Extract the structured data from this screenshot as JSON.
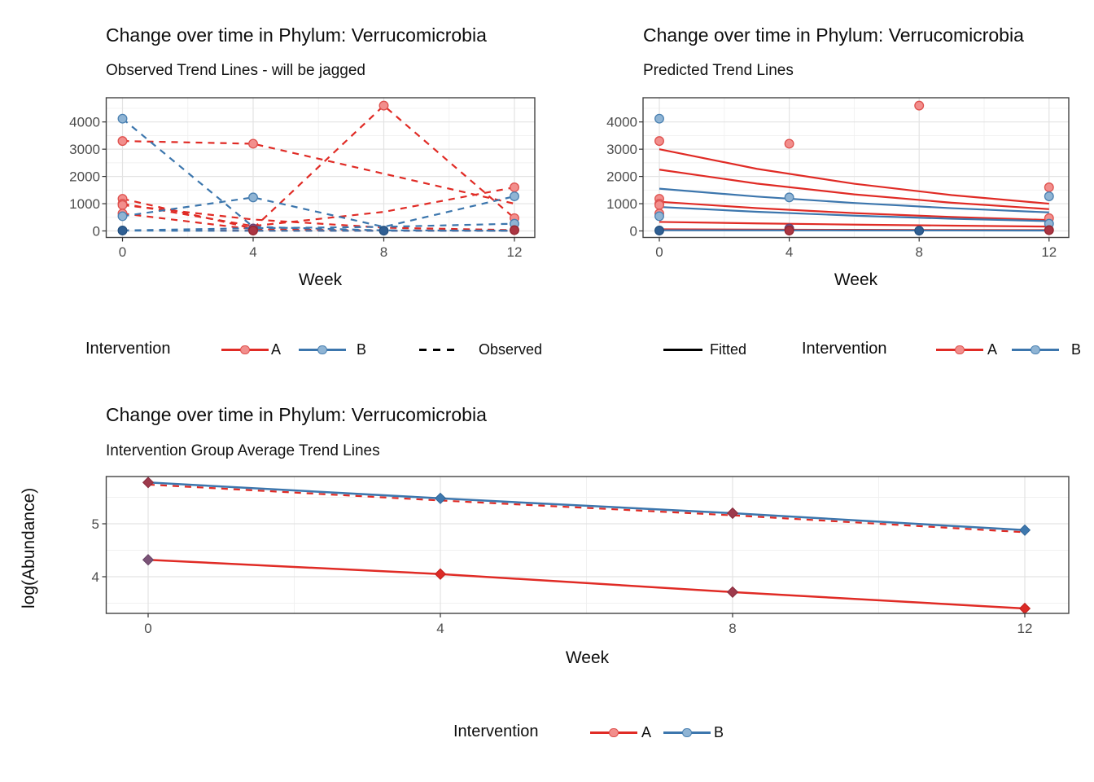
{
  "palette": {
    "red": "#E02B25",
    "blue": "#3C76AD",
    "black": "#000000",
    "axis_text": "#4d4d4d",
    "grid_major": "#e3e3e3",
    "grid_minor": "#f0f0f0",
    "panel_border": "#434343",
    "tick_mark": "#333333",
    "points": {
      "red": {
        "fill": "#F28E8C",
        "stroke": "#DE514E"
      },
      "blue": {
        "fill": "#8FB4D4",
        "stroke": "#4A80B1"
      },
      "dark_navy": {
        "fill": "#2F5F93",
        "stroke": "#24507F"
      },
      "dark_purple": {
        "fill": "#7D5080",
        "stroke": "#6A4070"
      },
      "dark_red": {
        "fill": "#AB3542",
        "stroke": "#93252F"
      }
    }
  },
  "chart_data": [
    {
      "id": "observed",
      "type": "line",
      "title": "Change over time in Phylum: Verrucomicrobia",
      "subtitle": "Observed Trend Lines - will be jagged",
      "xlabel": "Week",
      "ylabel": "",
      "x": [
        0,
        4,
        8,
        12
      ],
      "xticks": [
        0,
        4,
        8,
        12
      ],
      "yticks": [
        0,
        1000,
        2000,
        3000,
        4000
      ],
      "ylim": [
        -250,
        4900
      ],
      "linetype": "dashed",
      "grid": true,
      "legend_position": "bottom",
      "series": [
        {
          "group": "A",
          "color": "red",
          "values": [
            3300,
            3200,
            2100,
            1000
          ]
        },
        {
          "group": "A",
          "color": "red",
          "values": [
            1180,
            90,
            4600,
            470
          ]
        },
        {
          "group": "A",
          "color": "red",
          "values": [
            1000,
            180,
            700,
            1600
          ]
        },
        {
          "group": "A",
          "color": "red",
          "values": [
            950,
            420,
            120,
            30
          ]
        },
        {
          "group": "A",
          "color": "red",
          "values": [
            640,
            60,
            20,
            10
          ]
        },
        {
          "group": "A",
          "color": "red",
          "values": [
            20,
            10,
            5,
            5
          ]
        },
        {
          "group": "B",
          "color": "blue",
          "values": [
            4120,
            150,
            20,
            10
          ]
        },
        {
          "group": "B",
          "color": "blue",
          "values": [
            540,
            1230,
            150,
            1270
          ]
        },
        {
          "group": "B",
          "color": "blue",
          "values": [
            20,
            100,
            150,
            265
          ]
        },
        {
          "group": "B",
          "color": "blue",
          "values": [
            10,
            5,
            5,
            8
          ]
        }
      ],
      "markers": [
        {
          "week": 0,
          "value": 4120,
          "style": "blue"
        },
        {
          "week": 0,
          "value": 3300,
          "style": "red"
        },
        {
          "week": 0,
          "value": 1180,
          "style": "red"
        },
        {
          "week": 0,
          "value": 1000,
          "style": "red"
        },
        {
          "week": 0,
          "value": 950,
          "style": "red"
        },
        {
          "week": 0,
          "value": 640,
          "style": "red"
        },
        {
          "week": 0,
          "value": 540,
          "style": "blue"
        },
        {
          "week": 0,
          "value": 15,
          "style": "dark_navy"
        },
        {
          "week": 4,
          "value": 3200,
          "style": "red"
        },
        {
          "week": 4,
          "value": 1230,
          "style": "blue"
        },
        {
          "week": 4,
          "value": 90,
          "style": "dark_purple"
        },
        {
          "week": 4,
          "value": 15,
          "style": "dark_red"
        },
        {
          "week": 8,
          "value": 4600,
          "style": "red"
        },
        {
          "week": 8,
          "value": 10,
          "style": "dark_navy"
        },
        {
          "week": 12,
          "value": 1600,
          "style": "red"
        },
        {
          "week": 12,
          "value": 1270,
          "style": "blue"
        },
        {
          "week": 12,
          "value": 470,
          "style": "red"
        },
        {
          "week": 12,
          "value": 265,
          "style": "blue"
        },
        {
          "week": 12,
          "value": 30,
          "style": "dark_red"
        }
      ],
      "legend": {
        "title": "Intervention",
        "items": [
          {
            "label": "A",
            "color": "red"
          },
          {
            "label": "B",
            "color": "blue"
          }
        ],
        "linetype_item": {
          "label": "Observed",
          "style": "dashed",
          "color": "black"
        }
      }
    },
    {
      "id": "predicted",
      "type": "line",
      "title": "Change over time in Phylum: Verrucomicrobia",
      "subtitle": "Predicted Trend Lines",
      "xlabel": "Week",
      "ylabel": "",
      "xticks": [
        0,
        4,
        8,
        12
      ],
      "yticks": [
        0,
        1000,
        2000,
        3000,
        4000
      ],
      "ylim": [
        -250,
        4900
      ],
      "linetype": "solid",
      "grid": true,
      "legend_position": "bottom",
      "series": [
        {
          "group": "A",
          "color": "red",
          "x": [
            0,
            3,
            6,
            9,
            12
          ],
          "values": [
            3000,
            2280,
            1732,
            1316,
            1000
          ]
        },
        {
          "group": "A",
          "color": "red",
          "x": [
            0,
            3,
            6,
            9,
            12
          ],
          "values": [
            2250,
            1738,
            1342,
            1036,
            800
          ]
        },
        {
          "group": "B",
          "color": "blue",
          "x": [
            0,
            3,
            6,
            9,
            12
          ],
          "values": [
            1550,
            1261,
            1026,
            835,
            680
          ]
        },
        {
          "group": "A",
          "color": "red",
          "x": [
            0,
            3,
            6,
            9,
            12
          ],
          "values": [
            1070,
            837,
            654,
            512,
            400
          ]
        },
        {
          "group": "B",
          "color": "blue",
          "x": [
            0,
            3,
            6,
            9,
            12
          ],
          "values": [
            880,
            703,
            561,
            448,
            360
          ]
        },
        {
          "group": "A",
          "color": "red",
          "x": [
            0,
            3,
            6,
            9,
            12
          ],
          "values": [
            330,
            277,
            232,
            195,
            160
          ]
        },
        {
          "group": "A",
          "color": "red",
          "x": [
            0,
            3,
            6,
            9,
            12
          ],
          "values": [
            60,
            49,
            41,
            34,
            30
          ]
        },
        {
          "group": "B",
          "color": "blue",
          "x": [
            0,
            3,
            6,
            9,
            12
          ],
          "values": [
            25,
            22,
            19,
            17,
            15
          ]
        }
      ],
      "markers": [
        {
          "week": 0,
          "value": 4120,
          "style": "blue"
        },
        {
          "week": 0,
          "value": 3300,
          "style": "red"
        },
        {
          "week": 0,
          "value": 1180,
          "style": "red"
        },
        {
          "week": 0,
          "value": 1000,
          "style": "red"
        },
        {
          "week": 0,
          "value": 950,
          "style": "red"
        },
        {
          "week": 0,
          "value": 640,
          "style": "red"
        },
        {
          "week": 0,
          "value": 540,
          "style": "blue"
        },
        {
          "week": 0,
          "value": 15,
          "style": "dark_navy"
        },
        {
          "week": 4,
          "value": 3200,
          "style": "red"
        },
        {
          "week": 4,
          "value": 1230,
          "style": "blue"
        },
        {
          "week": 4,
          "value": 90,
          "style": "dark_purple"
        },
        {
          "week": 4,
          "value": 15,
          "style": "dark_red"
        },
        {
          "week": 8,
          "value": 4600,
          "style": "red"
        },
        {
          "week": 8,
          "value": 10,
          "style": "dark_navy"
        },
        {
          "week": 12,
          "value": 1600,
          "style": "red"
        },
        {
          "week": 12,
          "value": 1270,
          "style": "blue"
        },
        {
          "week": 12,
          "value": 470,
          "style": "red"
        },
        {
          "week": 12,
          "value": 265,
          "style": "blue"
        },
        {
          "week": 12,
          "value": 30,
          "style": "dark_red"
        }
      ],
      "legend": {
        "title": "Intervention",
        "items": [
          {
            "label": "A",
            "color": "red"
          },
          {
            "label": "B",
            "color": "blue"
          }
        ],
        "linetype_item": {
          "label": "Fitted",
          "style": "solid",
          "color": "black"
        }
      }
    },
    {
      "id": "average",
      "type": "line",
      "title": "Change over time in Phylum: Verrucomicrobia",
      "subtitle": "Intervention Group Average Trend Lines",
      "xlabel": "Week",
      "ylabel": "log(Abundance)",
      "x": [
        0,
        4,
        8,
        12
      ],
      "xticks": [
        0,
        4,
        8,
        12
      ],
      "yticks": [
        4,
        5
      ],
      "ylim": [
        3.31,
        5.89
      ],
      "linetype": "solid",
      "grid": true,
      "legend_position": "bottom",
      "series": [
        {
          "group": "A",
          "color": "red",
          "marker": "diamond",
          "values": [
            4.32,
            4.05,
            3.71,
            3.4
          ],
          "point_styles": [
            "dark_purple",
            "red_solid",
            "dark_red",
            "red_solid"
          ]
        },
        {
          "group": "B",
          "color": "blue",
          "marker": "diamond",
          "values": [
            5.78,
            5.48,
            5.2,
            4.88
          ],
          "point_styles": [
            "dark_red",
            "blue_solid",
            "dark_red",
            "blue_solid"
          ]
        }
      ],
      "overlay": {
        "color": "red",
        "style": "dashed",
        "values": [
          5.74,
          5.44,
          5.16,
          4.84
        ]
      },
      "point_solid": {
        "red_solid": {
          "fill": "#DC2B26",
          "stroke": "#C01F1C"
        },
        "blue_solid": {
          "fill": "#3E78AE",
          "stroke": "#2F6497"
        },
        "dark_red": {
          "fill": "#9E3A4C",
          "stroke": "#862A3C"
        },
        "dark_purple": {
          "fill": "#7B5377",
          "stroke": "#664264"
        }
      },
      "legend": {
        "title": "Intervention",
        "items": [
          {
            "label": "A",
            "color": "red"
          },
          {
            "label": "B",
            "color": "blue"
          }
        ]
      }
    }
  ]
}
